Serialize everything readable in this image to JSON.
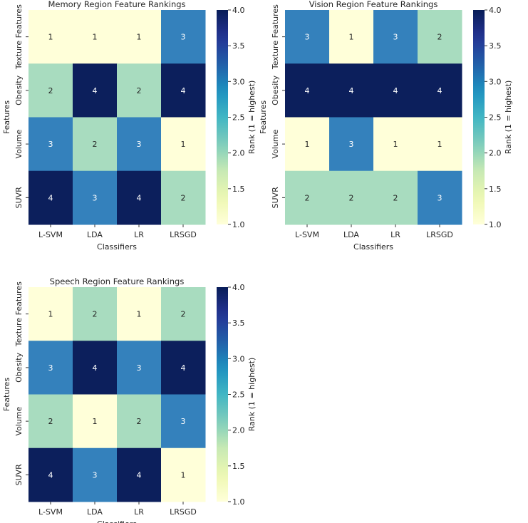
{
  "chart_data": [
    {
      "type": "heatmap",
      "title": "Memory Region Feature Rankings",
      "xlabel": "Classifiers",
      "ylabel": "Features",
      "x_categories": [
        "L-SVM",
        "LDA",
        "LR",
        "LRSGD"
      ],
      "y_categories": [
        "Texture Features",
        "Obesity",
        "Volume",
        "SUVR"
      ],
      "values": [
        [
          1,
          1,
          1,
          3
        ],
        [
          2,
          4,
          2,
          4
        ],
        [
          3,
          2,
          3,
          1
        ],
        [
          4,
          3,
          4,
          2
        ]
      ],
      "colorbar": {
        "label": "Rank (1 = highest)",
        "range": [
          1,
          4
        ],
        "ticks": [
          "1.0",
          "1.5",
          "2.0",
          "2.5",
          "3.0",
          "3.5",
          "4.0"
        ],
        "colormap": "YlGnBu"
      }
    },
    {
      "type": "heatmap",
      "title": "Vision Region Feature Rankings",
      "xlabel": "Classifiers",
      "ylabel": "Features",
      "x_categories": [
        "L-SVM",
        "LDA",
        "LR",
        "LRSGD"
      ],
      "y_categories": [
        "Texture Features",
        "Obesity",
        "Volume",
        "SUVR"
      ],
      "values": [
        [
          3,
          1,
          3,
          2
        ],
        [
          4,
          4,
          4,
          4
        ],
        [
          1,
          3,
          1,
          1
        ],
        [
          2,
          2,
          2,
          3
        ]
      ],
      "colorbar": {
        "label": "Rank (1 = highest)",
        "range": [
          1,
          4
        ],
        "ticks": [
          "1.0",
          "1.5",
          "2.0",
          "2.5",
          "3.0",
          "3.5",
          "4.0"
        ],
        "colormap": "YlGnBu"
      }
    },
    {
      "type": "heatmap",
      "title": "Speech Region Feature Rankings",
      "xlabel": "Classifiers",
      "ylabel": "Features",
      "x_categories": [
        "L-SVM",
        "LDA",
        "LR",
        "LRSGD"
      ],
      "y_categories": [
        "Texture Features",
        "Obesity",
        "Volume",
        "SUVR"
      ],
      "values": [
        [
          1,
          2,
          1,
          2
        ],
        [
          3,
          4,
          3,
          4
        ],
        [
          2,
          1,
          2,
          3
        ],
        [
          4,
          3,
          4,
          1
        ]
      ],
      "colorbar": {
        "label": "Rank (1 = highest)",
        "range": [
          1,
          4
        ],
        "ticks": [
          "1.0",
          "1.5",
          "2.0",
          "2.5",
          "3.0",
          "3.5",
          "4.0"
        ],
        "colormap": "YlGnBu"
      }
    }
  ],
  "colors": {
    "rank1": "#ffffd9",
    "rank2": "#a8dcbf",
    "rank3": "#3481bc",
    "rank4": "#0c1f5c"
  }
}
